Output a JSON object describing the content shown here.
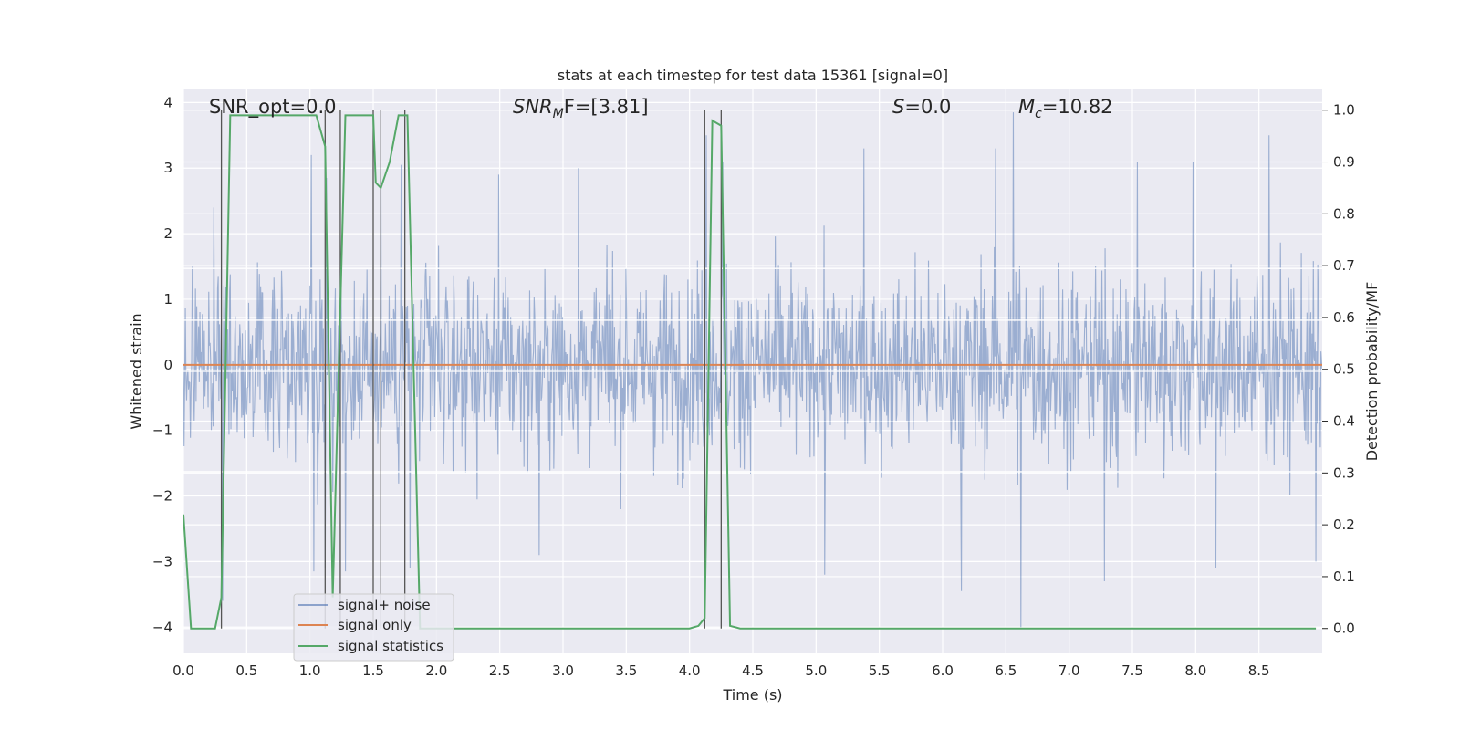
{
  "chart_data": {
    "type": "line",
    "title": "stats at each timestep for test data 15361 [signal=0]",
    "xlabel": "Time (s)",
    "ylabel_left": "Whitened strain",
    "ylabel_right": "Detection probability/MF",
    "xlim": [
      0,
      9
    ],
    "ylim_left": [
      -4.4,
      4.2
    ],
    "ylim_right": [
      -0.048,
      1.04
    ],
    "grid": true,
    "legend_placement": "lower-left",
    "x_ticks": [
      "0.0",
      "0.5",
      "1.0",
      "1.5",
      "2.0",
      "2.5",
      "3.0",
      "3.5",
      "4.0",
      "4.5",
      "5.0",
      "5.5",
      "6.0",
      "6.5",
      "7.0",
      "7.5",
      "8.0",
      "8.5"
    ],
    "y_ticks_left": [
      "−4",
      "−3",
      "−2",
      "−1",
      "0",
      "1",
      "2",
      "3",
      "4"
    ],
    "y_ticks_right": [
      "0.0",
      "0.1",
      "0.2",
      "0.3",
      "0.4",
      "0.5",
      "0.6",
      "0.7",
      "0.8",
      "0.9",
      "1.0"
    ],
    "annotations": {
      "snr_opt": "SNR_opt=0.0",
      "snr_mf_main": "SNR",
      "snr_mf_sub": "M",
      "snr_mf_rest": "F=[3.81]",
      "s_italic": "S",
      "s_rest": "=0.0",
      "mc_main": "M",
      "mc_sub": "c",
      "mc_rest": "=10.82"
    },
    "series": [
      {
        "name": "signal+ noise",
        "color": "#4c72b0",
        "axis": "left",
        "description_values": "whitened strain noise, roughly within [-4, 4]",
        "peaks": [
          [
            0.31,
            3.55
          ],
          [
            0.24,
            2.4
          ],
          [
            1.01,
            3.2
          ],
          [
            1.13,
            2.85
          ],
          [
            1.56,
            2.95
          ],
          [
            1.72,
            3.05
          ],
          [
            2.49,
            2.9
          ],
          [
            3.12,
            3.0
          ],
          [
            4.13,
            3.5
          ],
          [
            4.26,
            3.1
          ],
          [
            5.38,
            3.3
          ],
          [
            6.42,
            3.3
          ],
          [
            6.56,
            3.85
          ],
          [
            7.54,
            3.1
          ],
          [
            7.98,
            3.1
          ],
          [
            8.58,
            3.5
          ]
        ],
        "troughs": [
          [
            0.31,
            -3.6
          ],
          [
            1.03,
            -3.15
          ],
          [
            1.12,
            -3.1
          ],
          [
            1.28,
            -3.15
          ],
          [
            1.79,
            -3.1
          ],
          [
            2.81,
            -2.9
          ],
          [
            5.07,
            -3.2
          ],
          [
            6.15,
            -3.45
          ],
          [
            6.62,
            -4.0
          ],
          [
            7.28,
            -3.3
          ],
          [
            8.16,
            -3.1
          ],
          [
            8.95,
            -3.0
          ]
        ]
      },
      {
        "name": "signal only",
        "color": "#dd8452",
        "axis": "left",
        "x": [
          0,
          9
        ],
        "y": [
          0,
          0
        ]
      },
      {
        "name": "signal statistics",
        "color": "#55a868",
        "axis": "right",
        "x": [
          0.0,
          0.06,
          0.25,
          0.3,
          0.37,
          0.4,
          0.6,
          0.8,
          1.05,
          1.12,
          1.18,
          1.28,
          1.32,
          1.5,
          1.52,
          1.56,
          1.63,
          1.7,
          1.77,
          1.87,
          1.93,
          2.5,
          3.0,
          3.5,
          4.0,
          4.07,
          4.12,
          4.18,
          4.25,
          4.32,
          4.4,
          4.6,
          5.0,
          6.0,
          7.0,
          8.0,
          8.5,
          8.95
        ],
        "y": [
          0.22,
          0.0,
          0.0,
          0.06,
          0.99,
          0.99,
          0.99,
          0.99,
          0.99,
          0.93,
          0.06,
          0.99,
          0.99,
          0.99,
          0.86,
          0.85,
          0.9,
          0.99,
          0.99,
          0.0,
          0.0,
          0.0,
          0.0,
          0.0,
          0.0,
          0.005,
          0.02,
          0.98,
          0.97,
          0.005,
          0.0,
          0.0,
          0.0,
          0.0,
          0.0,
          0.0,
          0.0,
          0.0
        ]
      }
    ],
    "vertical_markers": {
      "color": "#555555",
      "x": [
        0.3,
        1.12,
        1.24,
        1.5,
        1.56,
        1.75,
        4.12,
        4.25
      ]
    },
    "horizontal_lines_left": [
      1.47,
      0.68,
      -0.1,
      -0.87,
      -1.63
    ]
  }
}
